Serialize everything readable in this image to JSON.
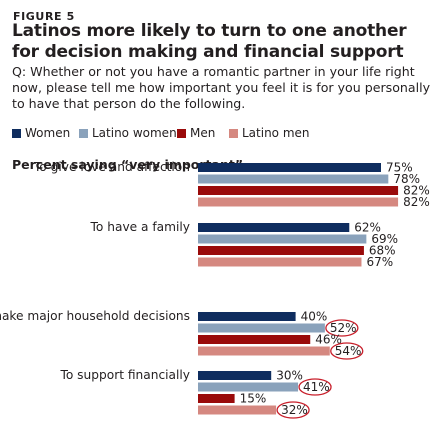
{
  "figure_label": "FIGURE 5",
  "title": "Latinos more likely to turn to one another for decision making and financial support",
  "question": "Q: Whether or not you have a romantic partner in your life right now, please tell me how important you feel it is for you personally to have that person do the following.",
  "subtitle": "Percent saying “very important”",
  "colors": {
    "women": "#0f2d5f",
    "latino_women": "#8aa2bb",
    "men": "#9a0a0a",
    "latino_men": "#d58880",
    "highlight_circle": "#c81e2a"
  },
  "chart_data": {
    "type": "bar",
    "orientation": "horizontal",
    "categories": [
      "To give love and affection",
      "To have a family",
      "To make major household decisions",
      "To support financially"
    ],
    "series": [
      {
        "name": "Women",
        "color_key": "women",
        "values": [
          75,
          62,
          40,
          30
        ]
      },
      {
        "name": "Latino women",
        "color_key": "latino_women",
        "values": [
          78,
          69,
          52,
          41
        ]
      },
      {
        "name": "Men",
        "color_key": "men",
        "values": [
          82,
          68,
          46,
          15
        ]
      },
      {
        "name": "Latino men",
        "color_key": "latino_men",
        "values": [
          82,
          67,
          54,
          32
        ]
      }
    ],
    "value_suffix": "%",
    "highlighted": [
      {
        "category": "To make major household decisions",
        "series": "Latino women"
      },
      {
        "category": "To make major household decisions",
        "series": "Latino men"
      },
      {
        "category": "To support financially",
        "series": "Latino women"
      },
      {
        "category": "To support financially",
        "series": "Latino men"
      }
    ],
    "xlim": [
      0,
      100
    ],
    "grid": false,
    "legend_position": "top",
    "title": "Latinos more likely to turn to one another for decision making and financial support",
    "xlabel": "",
    "ylabel": ""
  }
}
